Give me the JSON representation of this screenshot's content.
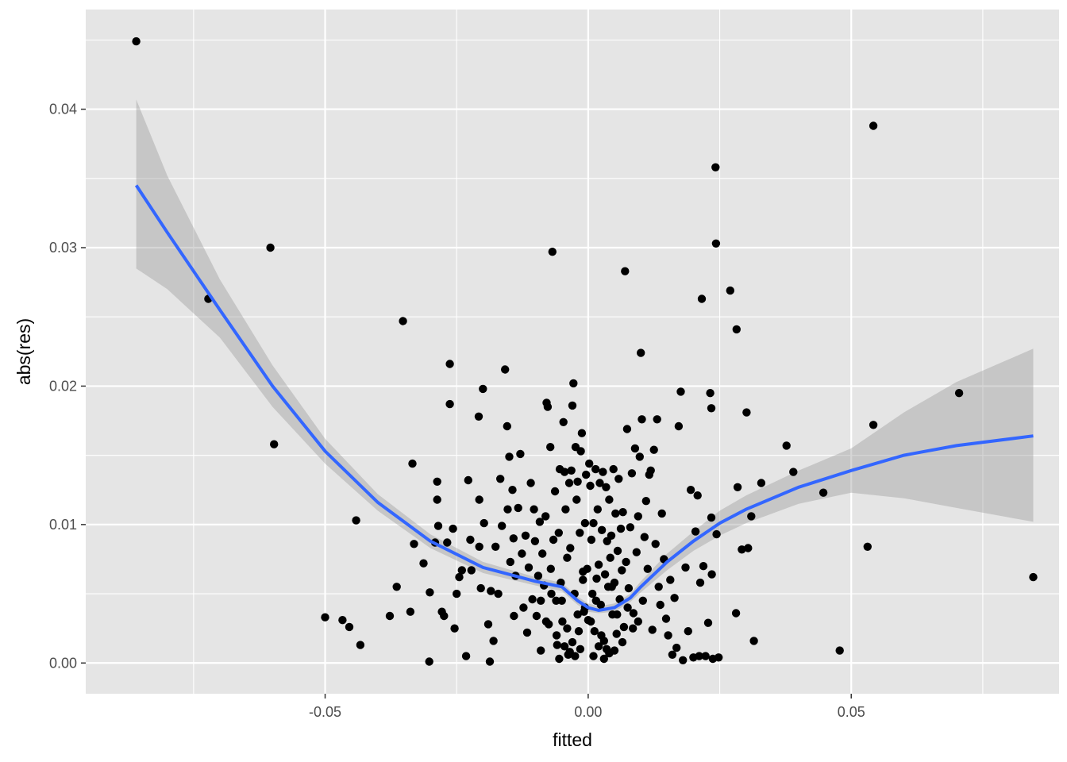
{
  "chart_data": {
    "type": "scatter",
    "title": "",
    "xlabel": "fitted",
    "ylabel": "abs(res)",
    "xlim": [
      -0.0955,
      0.0895
    ],
    "ylim": [
      -0.00222,
      0.0472
    ],
    "x_ticks": [
      -0.05,
      0.0,
      0.05
    ],
    "x_tick_labels": [
      "-0.05",
      "0.00",
      "0.05"
    ],
    "y_ticks": [
      0.0,
      0.01,
      0.02,
      0.03,
      0.04
    ],
    "y_tick_labels": [
      "0.00",
      "0.01",
      "0.02",
      "0.03",
      "0.04"
    ],
    "grid": true,
    "legend": "none",
    "colors": {
      "panel": "#e5e5e5",
      "grid": "#ffffff",
      "points": "#000000",
      "smooth": "#3366ff",
      "ribbon": "#999999"
    },
    "points": [
      [
        -0.0859,
        0.0449
      ],
      [
        -0.0722,
        0.0263
      ],
      [
        -0.0604,
        0.03
      ],
      [
        -0.0597,
        0.0158
      ],
      [
        -0.0352,
        0.0247
      ],
      [
        -0.0441,
        0.0103
      ],
      [
        -0.05,
        0.0033
      ],
      [
        -0.0467,
        0.0031
      ],
      [
        -0.0454,
        0.0026
      ],
      [
        -0.0433,
        0.0013
      ],
      [
        -0.0377,
        0.0034
      ],
      [
        -0.0364,
        0.0055
      ],
      [
        -0.0338,
        0.0037
      ],
      [
        -0.0334,
        0.0144
      ],
      [
        -0.0331,
        0.0086
      ],
      [
        -0.0313,
        0.0072
      ],
      [
        -0.0302,
        0.0001
      ],
      [
        -0.0301,
        0.0051
      ],
      [
        -0.0291,
        0.0087
      ],
      [
        -0.0287,
        0.0131
      ],
      [
        -0.0287,
        0.0118
      ],
      [
        -0.0285,
        0.0099
      ],
      [
        -0.0278,
        0.0037
      ],
      [
        -0.0274,
        0.0034
      ],
      [
        -0.0268,
        0.0087
      ],
      [
        -0.0263,
        0.0216
      ],
      [
        -0.0263,
        0.0187
      ],
      [
        -0.0257,
        0.0097
      ],
      [
        -0.0254,
        0.0025
      ],
      [
        -0.025,
        0.005
      ],
      [
        -0.0245,
        0.0062
      ],
      [
        -0.024,
        0.0067
      ],
      [
        -0.0232,
        0.0005
      ],
      [
        -0.0228,
        0.0132
      ],
      [
        -0.0224,
        0.0089
      ],
      [
        -0.0222,
        0.0067
      ],
      [
        -0.0208,
        0.0178
      ],
      [
        -0.0207,
        0.0118
      ],
      [
        -0.0207,
        0.0084
      ],
      [
        -0.0204,
        0.0054
      ],
      [
        -0.02,
        0.0198
      ],
      [
        -0.0198,
        0.0101
      ],
      [
        -0.019,
        0.0028
      ],
      [
        -0.0187,
        0.0001
      ],
      [
        -0.0185,
        0.0052
      ],
      [
        -0.018,
        0.0016
      ],
      [
        -0.0176,
        0.0084
      ],
      [
        -0.0171,
        0.005
      ],
      [
        -0.0167,
        0.0133
      ],
      [
        -0.0164,
        0.0099
      ],
      [
        -0.0158,
        0.0212
      ],
      [
        -0.0154,
        0.0171
      ],
      [
        -0.0153,
        0.0111
      ],
      [
        -0.015,
        0.0149
      ],
      [
        -0.0148,
        0.0073
      ],
      [
        -0.0144,
        0.0125
      ],
      [
        -0.0142,
        0.009
      ],
      [
        -0.0141,
        0.0034
      ],
      [
        -0.0138,
        0.0063
      ],
      [
        -0.0133,
        0.0112
      ],
      [
        -0.0129,
        0.0151
      ],
      [
        -0.0126,
        0.0079
      ],
      [
        -0.0123,
        0.004
      ],
      [
        -0.0119,
        0.0092
      ],
      [
        -0.0116,
        0.0022
      ],
      [
        -0.0113,
        0.0069
      ],
      [
        -0.0109,
        0.013
      ],
      [
        -0.0106,
        0.0046
      ],
      [
        -0.0103,
        0.0111
      ],
      [
        -0.0101,
        0.0088
      ],
      [
        -0.0098,
        0.0034
      ],
      [
        -0.0095,
        0.0063
      ],
      [
        -0.0092,
        0.0102
      ],
      [
        -0.009,
        0.0009
      ],
      [
        -0.0087,
        0.0079
      ],
      [
        -0.0084,
        0.0056
      ],
      [
        -0.0081,
        0.0106
      ],
      [
        -0.0079,
        0.0188
      ],
      [
        -0.0077,
        0.0185
      ],
      [
        -0.0075,
        0.0028
      ],
      [
        -0.0072,
        0.0156
      ],
      [
        -0.0071,
        0.0068
      ],
      [
        -0.0068,
        0.0297
      ],
      [
        -0.0066,
        0.0089
      ],
      [
        -0.0063,
        0.0124
      ],
      [
        -0.0061,
        0.0045
      ],
      [
        -0.0059,
        0.0013
      ],
      [
        -0.0056,
        0.0094
      ],
      [
        -0.0054,
        0.014
      ],
      [
        -0.0052,
        0.0058
      ],
      [
        -0.0049,
        0.003
      ],
      [
        -0.0047,
        0.0174
      ],
      [
        -0.0045,
        0.0138
      ],
      [
        -0.0043,
        0.0111
      ],
      [
        -0.004,
        0.0076
      ],
      [
        -0.0038,
        0.0006
      ],
      [
        -0.0036,
        0.013
      ],
      [
        -0.0034,
        0.0083
      ],
      [
        -0.0032,
        0.0139
      ],
      [
        -0.003,
        0.0186
      ],
      [
        -0.0028,
        0.0202
      ],
      [
        -0.0026,
        0.005
      ],
      [
        -0.0024,
        0.0156
      ],
      [
        -0.0022,
        0.0118
      ],
      [
        -0.002,
        0.0131
      ],
      [
        -0.0018,
        0.0023
      ],
      [
        -0.0016,
        0.0094
      ],
      [
        -0.0014,
        0.0153
      ],
      [
        -0.0012,
        0.0166
      ],
      [
        -0.001,
        0.0066
      ],
      [
        -0.0008,
        0.0037
      ],
      [
        -0.0006,
        0.0101
      ],
      [
        -0.0004,
        0.0136
      ],
      [
        -0.0002,
        0.0068
      ],
      [
        0.0,
        0.0031
      ],
      [
        0.0002,
        0.0144
      ],
      [
        0.0004,
        0.0128
      ],
      [
        0.0006,
        0.0089
      ],
      [
        0.0008,
        0.005
      ],
      [
        0.001,
        0.0101
      ],
      [
        0.0012,
        0.0023
      ],
      [
        0.0014,
        0.014
      ],
      [
        0.0016,
        0.0061
      ],
      [
        0.0018,
        0.0111
      ],
      [
        0.002,
        0.0071
      ],
      [
        0.0022,
        0.013
      ],
      [
        0.0024,
        0.0042
      ],
      [
        0.0026,
        0.0096
      ],
      [
        0.0028,
        0.0138
      ],
      [
        0.003,
        0.0016
      ],
      [
        0.0032,
        0.0064
      ],
      [
        0.0034,
        0.0127
      ],
      [
        0.0036,
        0.0088
      ],
      [
        0.0038,
        0.0055
      ],
      [
        0.004,
        0.0118
      ],
      [
        0.0042,
        0.0076
      ],
      [
        0.0044,
        0.0092
      ],
      [
        0.0046,
        0.0035
      ],
      [
        0.0048,
        0.014
      ],
      [
        0.005,
        0.0058
      ],
      [
        0.0052,
        0.0108
      ],
      [
        0.0054,
        0.0021
      ],
      [
        0.0056,
        0.0081
      ],
      [
        0.0058,
        0.0133
      ],
      [
        0.006,
        0.0046
      ],
      [
        0.0062,
        0.0097
      ],
      [
        0.0064,
        0.0067
      ],
      [
        0.0066,
        0.0109
      ],
      [
        0.0068,
        0.0026
      ],
      [
        0.007,
        0.0283
      ],
      [
        0.0072,
        0.0073
      ],
      [
        0.0074,
        0.0169
      ],
      [
        0.0077,
        0.0054
      ],
      [
        0.008,
        0.0098
      ],
      [
        0.0083,
        0.0137
      ],
      [
        0.0086,
        0.0036
      ],
      [
        0.0089,
        0.0155
      ],
      [
        0.0092,
        0.008
      ],
      [
        0.0095,
        0.0106
      ],
      [
        0.0098,
        0.0149
      ],
      [
        0.01,
        0.0224
      ],
      [
        0.0102,
        0.0176
      ],
      [
        0.0104,
        0.0045
      ],
      [
        0.0107,
        0.0091
      ],
      [
        0.011,
        0.0117
      ],
      [
        0.0113,
        0.0068
      ],
      [
        0.0116,
        0.0136
      ],
      [
        0.0119,
        0.0139
      ],
      [
        0.0122,
        0.0024
      ],
      [
        0.0125,
        0.0154
      ],
      [
        0.0128,
        0.0086
      ],
      [
        0.0131,
        0.0176
      ],
      [
        0.0134,
        0.0055
      ],
      [
        0.0137,
        0.0042
      ],
      [
        0.014,
        0.0108
      ],
      [
        0.0144,
        0.0075
      ],
      [
        0.0148,
        0.0032
      ],
      [
        0.0152,
        0.002
      ],
      [
        0.0156,
        0.006
      ],
      [
        0.016,
        0.0006
      ],
      [
        0.0164,
        0.0047
      ],
      [
        0.0168,
        0.0011
      ],
      [
        0.0172,
        0.0171
      ],
      [
        0.0176,
        0.0196
      ],
      [
        0.018,
        0.0002
      ],
      [
        0.0185,
        0.0069
      ],
      [
        0.019,
        0.0023
      ],
      [
        0.0195,
        0.0125
      ],
      [
        0.02,
        0.0004
      ],
      [
        0.0204,
        0.0095
      ],
      [
        0.0208,
        0.0121
      ],
      [
        0.0211,
        0.0005
      ],
      [
        0.0213,
        0.0058
      ],
      [
        0.0216,
        0.0263
      ],
      [
        0.0219,
        0.007
      ],
      [
        0.0223,
        0.0005
      ],
      [
        0.0228,
        0.0029
      ],
      [
        0.0232,
        0.0195
      ],
      [
        0.0234,
        0.0184
      ],
      [
        0.0234,
        0.0105
      ],
      [
        0.0235,
        0.0064
      ],
      [
        0.0237,
        0.0003
      ],
      [
        0.0242,
        0.0358
      ],
      [
        0.0243,
        0.0303
      ],
      [
        0.0244,
        0.0093
      ],
      [
        0.0248,
        0.0004
      ],
      [
        0.027,
        0.0269
      ],
      [
        0.0281,
        0.0036
      ],
      [
        0.0282,
        0.0241
      ],
      [
        0.0284,
        0.0127
      ],
      [
        0.0292,
        0.0082
      ],
      [
        0.0301,
        0.0181
      ],
      [
        0.0304,
        0.0083
      ],
      [
        0.031,
        0.0106
      ],
      [
        0.0315,
        0.0016
      ],
      [
        0.0329,
        0.013
      ],
      [
        0.0377,
        0.0157
      ],
      [
        0.039,
        0.0138
      ],
      [
        0.0447,
        0.0123
      ],
      [
        0.0478,
        0.0009
      ],
      [
        0.0531,
        0.0084
      ],
      [
        0.0542,
        0.0388
      ],
      [
        0.0542,
        0.0172
      ],
      [
        0.0705,
        0.0195
      ],
      [
        0.0846,
        0.0062
      ],
      [
        -0.001,
        0.006
      ],
      [
        -0.0006,
        0.004
      ],
      [
        0.0005,
        0.003
      ],
      [
        0.0015,
        0.0045
      ],
      [
        -0.002,
        0.0035
      ],
      [
        0.0025,
        0.002
      ],
      [
        -0.003,
        0.0015
      ],
      [
        0.0035,
        0.001
      ],
      [
        -0.004,
        0.0025
      ],
      [
        0.0045,
        0.0055
      ],
      [
        -0.005,
        0.0045
      ],
      [
        0.0055,
        0.0035
      ],
      [
        -0.006,
        0.002
      ],
      [
        0.0065,
        0.0015
      ],
      [
        -0.007,
        0.005
      ],
      [
        0.0075,
        0.004
      ],
      [
        -0.008,
        0.003
      ],
      [
        0.0085,
        0.0025
      ],
      [
        -0.009,
        0.0045
      ],
      [
        0.0095,
        0.003
      ],
      [
        -0.0015,
        0.001
      ],
      [
        0.001,
        0.0005
      ],
      [
        -0.0025,
        0.0005
      ],
      [
        0.002,
        0.0012
      ],
      [
        -0.0035,
        0.0008
      ],
      [
        0.003,
        0.0003
      ],
      [
        -0.0045,
        0.0012
      ],
      [
        0.004,
        0.0007
      ],
      [
        -0.0055,
        0.0003
      ],
      [
        0.005,
        0.0009
      ]
    ],
    "smooth": {
      "x": [
        -0.0859,
        -0.08,
        -0.07,
        -0.06,
        -0.05,
        -0.04,
        -0.03,
        -0.02,
        -0.01,
        -0.005,
        -0.002,
        0.0,
        0.002,
        0.005,
        0.008,
        0.01,
        0.015,
        0.02,
        0.025,
        0.03,
        0.04,
        0.05,
        0.06,
        0.07,
        0.0846
      ],
      "y": [
        0.0345,
        0.0311,
        0.0255,
        0.02,
        0.0153,
        0.0116,
        0.0088,
        0.0069,
        0.0059,
        0.0055,
        0.0045,
        0.004,
        0.0038,
        0.004,
        0.0047,
        0.0055,
        0.0073,
        0.0088,
        0.0101,
        0.0111,
        0.0127,
        0.0139,
        0.015,
        0.0157,
        0.0164
      ]
    },
    "band": {
      "lower": [
        0.0285,
        0.027,
        0.0235,
        0.0185,
        0.0144,
        0.011,
        0.0083,
        0.0065,
        0.0056,
        0.0052,
        0.0042,
        0.0037,
        0.0036,
        0.0037,
        0.0044,
        0.0051,
        0.0067,
        0.0081,
        0.0092,
        0.0101,
        0.0115,
        0.0123,
        0.0119,
        0.0112,
        0.0102
      ],
      "upper": [
        0.0407,
        0.0352,
        0.0277,
        0.0215,
        0.0162,
        0.0122,
        0.0093,
        0.0073,
        0.0062,
        0.0058,
        0.0048,
        0.0043,
        0.0041,
        0.0043,
        0.005,
        0.0059,
        0.0079,
        0.0095,
        0.011,
        0.0121,
        0.0139,
        0.0155,
        0.0181,
        0.0203,
        0.0227
      ]
    }
  }
}
